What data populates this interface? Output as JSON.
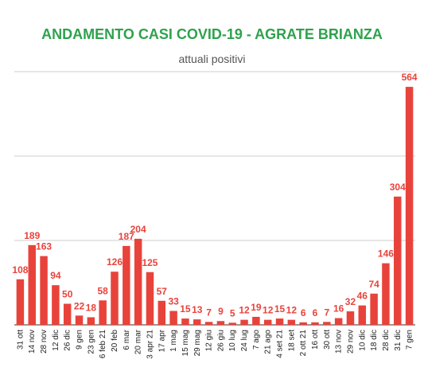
{
  "chart_data": {
    "type": "bar",
    "title": "ANDAMENTO CASI COVID-19 - AGRATE BRIANZA",
    "subtitle": "attuali positivi",
    "xlabel": "",
    "ylabel": "",
    "ylim": [
      0,
      600
    ],
    "grid": true,
    "legend": "none",
    "bar_color": "#e8433b",
    "title_color": "#2ea24c",
    "categories": [
      "31 ott",
      "14 nov",
      "28 nov",
      "12 dic",
      "26 dic",
      "9 gen",
      "23 gen",
      "6 feb 21",
      "20 feb",
      "6 mar",
      "20 mar",
      "3 apr 21",
      "17 apr",
      "1 mag",
      "15 mag",
      "29 mag",
      "12 giu",
      "26 giu",
      "10 lug",
      "24 lug",
      "7 ago",
      "21 ago",
      "4 set 21",
      "18 set",
      "2 ott 21",
      "16 ott",
      "30 ott",
      "13 nov",
      "29 nov",
      "10 dic",
      "18 dic",
      "28 dic",
      "31 dic",
      "7 gen"
    ],
    "values": [
      108,
      189,
      163,
      94,
      50,
      22,
      18,
      58,
      126,
      187,
      204,
      125,
      57,
      33,
      15,
      13,
      7,
      9,
      5,
      12,
      19,
      12,
      15,
      12,
      6,
      6,
      7,
      16,
      32,
      46,
      74,
      146,
      304,
      564
    ]
  }
}
